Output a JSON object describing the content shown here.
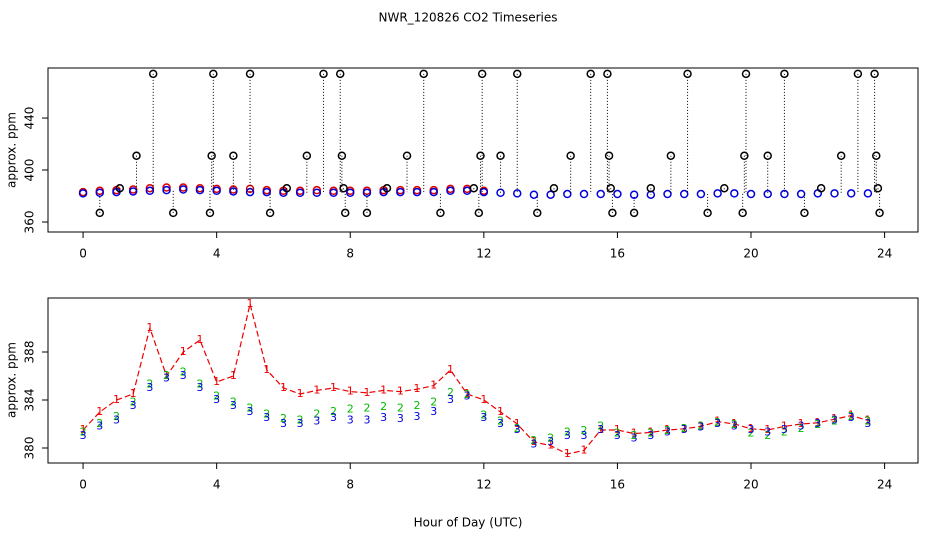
{
  "chart_data": [
    {
      "type": "scatter",
      "title": "NWR_120826  CO2 Timeseries",
      "y_label": "approx. ppm",
      "xlim": [
        -1.05,
        25
      ],
      "xticks": [
        0,
        4,
        8,
        12,
        16,
        20,
        24
      ],
      "ylim": [
        352.3,
        478.5
      ],
      "yticks": [
        360,
        400,
        440
      ],
      "spike_lines": true,
      "series": [
        {
          "name": "red",
          "color": "#dd0000",
          "x": [
            0,
            0.5,
            1,
            1.5,
            2,
            2.5,
            3,
            3.5,
            4,
            4.5,
            5,
            5.5,
            6,
            6.5,
            7,
            7.5,
            8,
            8.5,
            9,
            9.5,
            10,
            10.5,
            11,
            11.5,
            12
          ],
          "values": [
            383,
            384,
            384.5,
            385,
            386,
            386.5,
            386.5,
            386,
            385.5,
            385,
            385.5,
            384.5,
            384,
            384,
            384.5,
            384,
            384,
            384,
            384.5,
            384.5,
            384.5,
            384.5,
            385.5,
            385.5,
            384
          ]
        },
        {
          "name": "blue",
          "color": "#0000dd",
          "x": [
            0,
            0.5,
            1,
            1.5,
            2,
            2.5,
            3,
            3.5,
            4,
            4.5,
            5,
            5.5,
            6,
            6.5,
            7,
            7.5,
            8,
            8.5,
            9,
            9.5,
            10,
            10.5,
            11,
            11.5,
            12,
            12.5,
            13,
            13.5,
            14,
            14.5,
            15,
            15.5,
            16,
            16.5,
            17,
            17.5,
            18,
            18.5,
            19,
            19.5,
            20,
            20.5,
            21,
            21.5,
            22,
            22.5,
            23,
            23.5
          ],
          "values": [
            382,
            382.5,
            383,
            383.5,
            384,
            384.5,
            385,
            384.5,
            384,
            383.5,
            383,
            383,
            382.5,
            382.5,
            382.5,
            382.5,
            382.5,
            382.5,
            383,
            383,
            383,
            383,
            384,
            384,
            383,
            382.5,
            382,
            381,
            381,
            381.5,
            381.5,
            381.5,
            381.5,
            381,
            381,
            381.5,
            381.5,
            381.5,
            382,
            382,
            381.5,
            381.5,
            381.5,
            381.5,
            382,
            382,
            382,
            382
          ]
        },
        {
          "name": "black",
          "color": "#000000",
          "x": [
            0.5,
            1.1,
            1.6,
            2.1,
            2.7,
            3.8,
            3.85,
            3.9,
            4.5,
            5.0,
            5.6,
            6.1,
            6.7,
            7.2,
            7.7,
            7.75,
            7.8,
            7.85,
            8.5,
            9.1,
            9.7,
            10.2,
            10.7,
            11.7,
            11.85,
            11.9,
            11.95,
            12.5,
            13.0,
            13.6,
            14.1,
            14.6,
            15.2,
            15.7,
            15.75,
            15.8,
            15.85,
            16.5,
            17.0,
            17.6,
            18.1,
            18.7,
            19.2,
            19.75,
            19.8,
            19.85,
            20.5,
            21.0,
            21.6,
            22.1,
            22.7,
            23.2,
            23.7,
            23.75,
            23.8,
            23.85
          ],
          "values": [
            367,
            386,
            411,
            474,
            367,
            367,
            411,
            474,
            411,
            474,
            367,
            386,
            411,
            474,
            474,
            411,
            386,
            367,
            367,
            386,
            411,
            474,
            367,
            386,
            367,
            411,
            474,
            411,
            474,
            367,
            386,
            411,
            474,
            474,
            411,
            386,
            367,
            367,
            386,
            411,
            474,
            367,
            386,
            367,
            411,
            474,
            411,
            474,
            367,
            386,
            411,
            474,
            474,
            411,
            386,
            367
          ]
        }
      ]
    },
    {
      "type": "line",
      "y_label": "approx. ppm",
      "x_label": "Hour of Day (UTC)",
      "xlim": [
        -1.05,
        25
      ],
      "xticks": [
        0,
        4,
        8,
        12,
        16,
        20,
        24
      ],
      "ylim": [
        378.75,
        392.5
      ],
      "yticks": [
        380,
        384,
        388
      ],
      "x": [
        0,
        0.5,
        1,
        1.5,
        2,
        2.5,
        3,
        3.5,
        4,
        4.5,
        5,
        5.5,
        6,
        6.5,
        7,
        7.5,
        8,
        8.5,
        9,
        9.5,
        10,
        10.5,
        11,
        11.5,
        12,
        12.5,
        13,
        13.5,
        14,
        14.5,
        15,
        15.5,
        16,
        16.5,
        17,
        17.5,
        18,
        18.5,
        19,
        19.5,
        20,
        20.5,
        21,
        21.5,
        22,
        22.5,
        23,
        23.5
      ],
      "series": [
        {
          "name": "1",
          "marker": "1",
          "color": "#ee0000",
          "values": [
            381.5,
            383,
            384,
            384.5,
            390,
            386,
            388,
            389,
            385.5,
            386,
            392,
            386.5,
            385,
            384.5,
            384.8,
            385,
            384.7,
            384.6,
            384.8,
            384.7,
            384.9,
            385.2,
            386.5,
            384.5,
            384,
            383,
            382,
            380.5,
            380.2,
            379.5,
            379.8,
            381.5,
            381.5,
            381.2,
            381.3,
            381.5,
            381.6,
            381.8,
            382.2,
            382,
            381.6,
            381.5,
            381.8,
            382,
            382.1,
            382.4,
            382.7,
            382.3
          ]
        },
        {
          "name": "2",
          "marker": "2",
          "color": "#00bb00",
          "values": [
            381.3,
            382,
            382.6,
            383.8,
            385.3,
            386,
            386.3,
            385.3,
            384.3,
            383.8,
            383.3,
            382.8,
            382.4,
            382.3,
            382.8,
            383,
            383.2,
            383.3,
            383.4,
            383.3,
            383.5,
            383.8,
            384.6,
            384.4,
            382.7,
            382.2,
            381.6,
            380.6,
            380.8,
            381.3,
            381.4,
            381.8,
            381.2,
            381,
            381.2,
            381.4,
            381.6,
            381.8,
            382.1,
            381.9,
            381.2,
            381,
            381.3,
            381.6,
            381.9,
            382.2,
            382.6,
            382.2
          ]
        },
        {
          "name": "3",
          "marker": "3",
          "color": "#0000dd",
          "values": [
            381,
            381.8,
            382.3,
            383.5,
            385,
            385.8,
            386,
            385,
            384,
            383.5,
            383,
            382.5,
            382,
            382,
            382.2,
            382.5,
            382.3,
            382.3,
            382.5,
            382.4,
            382.6,
            383,
            384,
            384.3,
            382.5,
            382,
            381.5,
            380.3,
            380.5,
            381,
            381,
            381.5,
            381,
            380.8,
            381,
            381.3,
            381.5,
            381.7,
            382,
            381.8,
            381.5,
            381.3,
            381.5,
            381.8,
            382,
            382.3,
            382.5,
            382
          ]
        }
      ]
    }
  ]
}
